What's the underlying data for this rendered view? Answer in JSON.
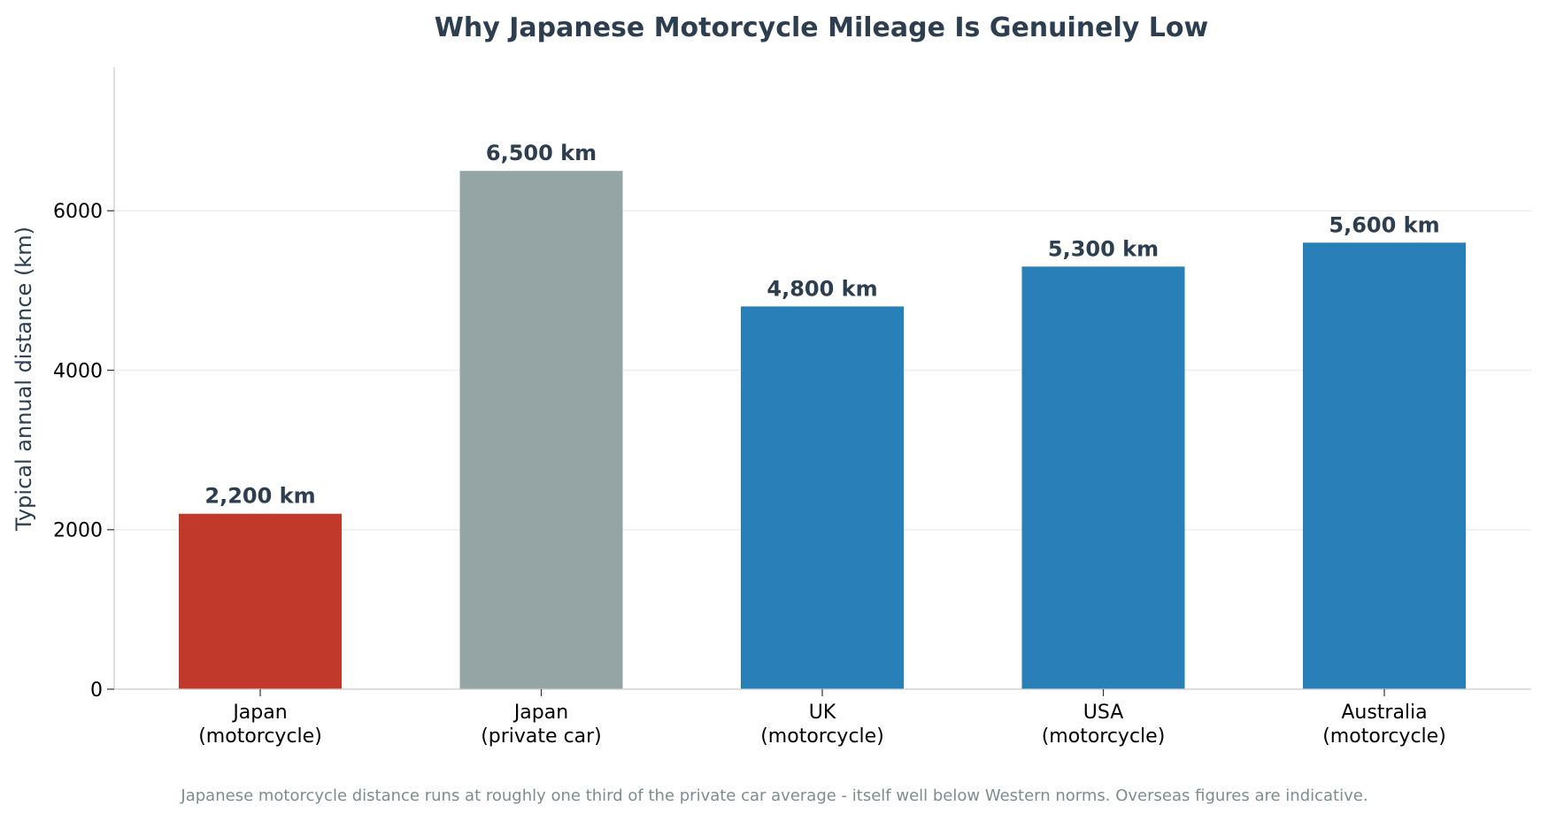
{
  "chart_data": {
    "type": "bar",
    "title": "Why Japanese Motorcycle Mileage Is Genuinely Low",
    "xlabel": "",
    "ylabel": "Typical annual distance (km)",
    "ylim": [
      0,
      7800
    ],
    "yticks": [
      0,
      2000,
      4000,
      6000
    ],
    "grid": "horizontal",
    "categories": [
      [
        "Japan",
        "(motorcycle)"
      ],
      [
        "Japan",
        "(private car)"
      ],
      [
        "UK",
        "(motorcycle)"
      ],
      [
        "USA",
        "(motorcycle)"
      ],
      [
        "Australia",
        "(motorcycle)"
      ]
    ],
    "values": [
      2200,
      6500,
      4800,
      5300,
      5600
    ],
    "value_labels": [
      "2,200 km",
      "6,500 km",
      "4,800 km",
      "5,300 km",
      "5,600 km"
    ],
    "colors": [
      "#c0392b",
      "#95a5a6",
      "#2980b9",
      "#2980b9",
      "#2980b9"
    ],
    "footnote": "Japanese motorcycle distance runs at roughly one third of the private car average - itself well below Western norms. Overseas figures are indicative."
  }
}
